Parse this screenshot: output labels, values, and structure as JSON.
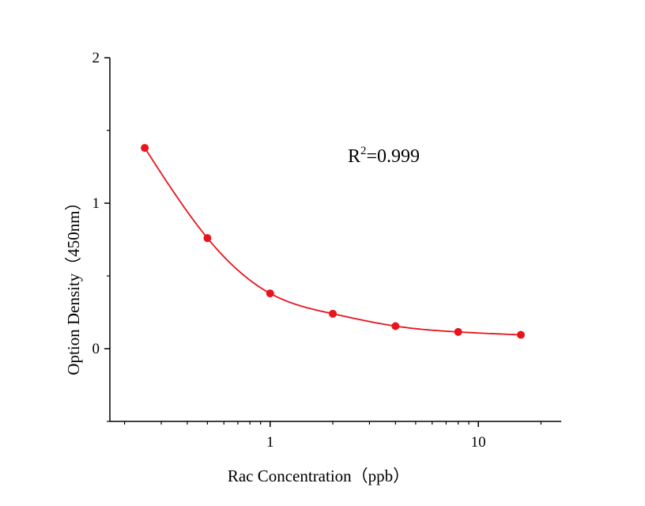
{
  "chart_data": {
    "type": "scatter",
    "x_scale": "log",
    "xlabel": "Rac Concentration（ppb）",
    "ylabel": "Option Density（450nm）",
    "xlim": [
      0.17,
      25
    ],
    "ylim": [
      -0.5,
      2
    ],
    "x_tick_labels": [
      "1",
      "10"
    ],
    "x_ticks": [
      1,
      10
    ],
    "y_tick_labels": [
      "0",
      "1",
      "2"
    ],
    "y_ticks": [
      0,
      1,
      2
    ],
    "annotation": {
      "base": "R",
      "sup": "2",
      "rest": "=0.999"
    },
    "grid": false,
    "color": "#e8141c",
    "series": [
      {
        "x": [
          0.25,
          0.5,
          1,
          2,
          4,
          8,
          16
        ],
        "y": [
          1.38,
          0.76,
          0.38,
          0.24,
          0.155,
          0.115,
          0.095
        ]
      }
    ],
    "fit": "4-parameter logistic curve"
  }
}
